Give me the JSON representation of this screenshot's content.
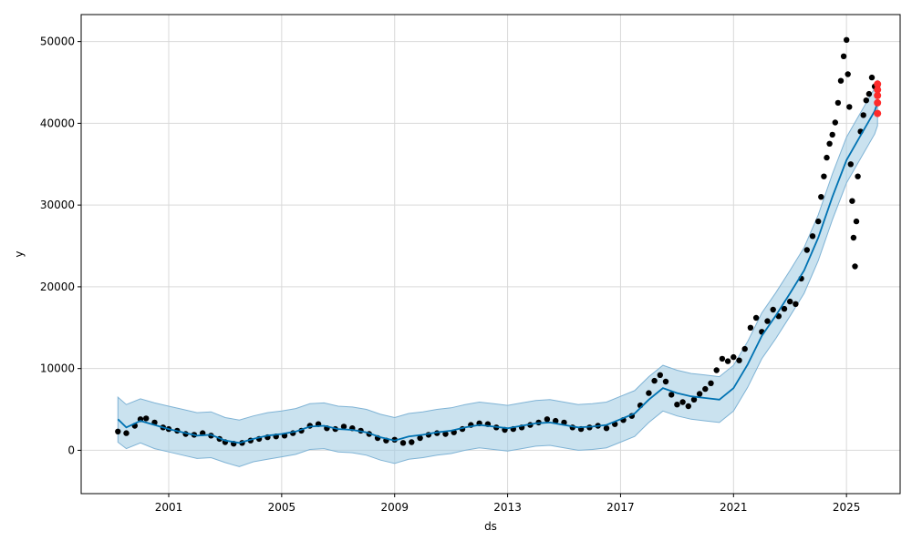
{
  "chart_data": {
    "type": "scatter",
    "title": "",
    "xlabel": "ds",
    "ylabel": "y",
    "xlim": [
      1997.9,
      2026.9
    ],
    "ylim": [
      -5300,
      53300
    ],
    "x_ticks": [
      2001,
      2005,
      2009,
      2013,
      2017,
      2021,
      2025
    ],
    "x_tick_labels": [
      "2001",
      "2005",
      "2009",
      "2013",
      "2017",
      "2021",
      "2025"
    ],
    "y_ticks": [
      0,
      10000,
      20000,
      30000,
      40000,
      50000
    ],
    "y_tick_labels": [
      "0",
      "10000",
      "20000",
      "30000",
      "40000",
      "50000"
    ],
    "grid": true,
    "colors": {
      "observed": "#000000",
      "forecast": "#0072B2",
      "interval": "#9ecae1",
      "interval_edge": "#7fb3d5",
      "highlight": "#ff2b2b"
    },
    "observed": {
      "x": [
        1999.2,
        1999.5,
        1999.8,
        2000.0,
        2000.2,
        2000.5,
        2000.8,
        2001.0,
        2001.3,
        2001.6,
        2001.9,
        2002.2,
        2002.5,
        2002.8,
        2003.0,
        2003.3,
        2003.6,
        2003.9,
        2004.2,
        2004.5,
        2004.8,
        2005.1,
        2005.4,
        2005.7,
        2006.0,
        2006.3,
        2006.6,
        2006.9,
        2007.2,
        2007.5,
        2007.8,
        2008.1,
        2008.4,
        2008.7,
        2009.0,
        2009.3,
        2009.6,
        2009.9,
        2010.2,
        2010.5,
        2010.8,
        2011.1,
        2011.4,
        2011.7,
        2012.0,
        2012.3,
        2012.6,
        2012.9,
        2013.2,
        2013.5,
        2013.8,
        2014.1,
        2014.4,
        2014.7,
        2015.0,
        2015.3,
        2015.6,
        2015.9,
        2016.2,
        2016.5,
        2016.8,
        2017.1,
        2017.4,
        2017.7,
        2018.0,
        2018.2,
        2018.4,
        2018.6,
        2018.8,
        2019.0,
        2019.2,
        2019.4,
        2019.6,
        2019.8,
        2020.0,
        2020.2,
        2020.4,
        2020.6,
        2020.8,
        2021.0,
        2021.2,
        2021.4,
        2021.6,
        2021.8,
        2022.0,
        2022.2,
        2022.4,
        2022.6,
        2022.8,
        2023.0,
        2023.2,
        2023.4,
        2023.6,
        2023.8,
        2024.0,
        2024.1,
        2024.2,
        2024.3,
        2024.4,
        2024.5,
        2024.6,
        2024.7,
        2024.8,
        2024.9,
        2025.0,
        2025.05,
        2025.1,
        2025.15,
        2025.2,
        2025.25,
        2025.3,
        2025.35,
        2025.4,
        2025.5,
        2025.6,
        2025.7,
        2025.8,
        2025.9,
        2026.0,
        2026.1
      ],
      "y": [
        2300,
        2100,
        3000,
        3800,
        3900,
        3400,
        2800,
        2600,
        2400,
        2000,
        1900,
        2100,
        1800,
        1400,
        1000,
        800,
        900,
        1200,
        1400,
        1600,
        1700,
        1800,
        2100,
        2400,
        3000,
        3200,
        2700,
        2600,
        2900,
        2700,
        2400,
        2000,
        1500,
        1200,
        1300,
        900,
        1000,
        1500,
        1900,
        2100,
        2000,
        2200,
        2600,
        3100,
        3300,
        3200,
        2800,
        2500,
        2600,
        2800,
        3100,
        3400,
        3800,
        3600,
        3400,
        2800,
        2600,
        2800,
        3000,
        2700,
        3200,
        3700,
        4200,
        5500,
        7000,
        8500,
        9200,
        8400,
        6800,
        5600,
        5900,
        5400,
        6200,
        6900,
        7500,
        8200,
        9800,
        11200,
        10900,
        11400,
        11000,
        12400,
        15000,
        16200,
        14500,
        15800,
        17200,
        16400,
        17300,
        18200,
        17900,
        21000,
        24500,
        26200,
        28000,
        31000,
        33500,
        35800,
        37500,
        38600,
        40100,
        42500,
        45200,
        48200,
        50200,
        46000,
        42000,
        35000,
        30500,
        26000,
        22500,
        28000,
        33500,
        39000,
        41000,
        42800,
        43600,
        45600,
        44500,
        44600
      ]
    },
    "highlight": {
      "x": [
        2026.1,
        2026.1,
        2026.1,
        2026.1,
        2026.1
      ],
      "y": [
        44800,
        44100,
        43400,
        42500,
        41200
      ]
    },
    "forecast": {
      "x": [
        1999.2,
        1999.5,
        2000.0,
        2000.5,
        2001.0,
        2001.5,
        2002.0,
        2002.5,
        2003.0,
        2003.5,
        2004.0,
        2004.5,
        2005.0,
        2005.5,
        2006.0,
        2006.5,
        2007.0,
        2007.5,
        2008.0,
        2008.5,
        2009.0,
        2009.5,
        2010.0,
        2010.5,
        2011.0,
        2011.5,
        2012.0,
        2012.5,
        2013.0,
        2013.5,
        2014.0,
        2014.5,
        2015.0,
        2015.5,
        2016.0,
        2016.5,
        2017.0,
        2017.5,
        2018.0,
        2018.5,
        2019.0,
        2019.5,
        2020.0,
        2020.5,
        2021.0,
        2021.5,
        2022.0,
        2022.5,
        2023.0,
        2023.5,
        2024.0,
        2024.5,
        2025.0,
        2025.5,
        2026.0,
        2026.1
      ],
      "yhat": [
        3800,
        2800,
        3600,
        3100,
        2600,
        2200,
        1800,
        1900,
        1200,
        900,
        1400,
        1800,
        2000,
        2300,
        2900,
        3000,
        2600,
        2500,
        2200,
        1600,
        1200,
        1700,
        1900,
        2200,
        2400,
        2800,
        3100,
        2900,
        2700,
        3000,
        3300,
        3400,
        3100,
        2800,
        2900,
        3100,
        3800,
        4500,
        6200,
        7600,
        7000,
        6600,
        6400,
        6200,
        7600,
        10500,
        14000,
        16500,
        19200,
        22000,
        26000,
        31000,
        35500,
        38500,
        41500,
        42500
      ],
      "yhat_lower": [
        1000,
        200,
        900,
        200,
        -200,
        -600,
        -1000,
        -900,
        -1500,
        -2000,
        -1400,
        -1100,
        -800,
        -500,
        100,
        200,
        -200,
        -300,
        -600,
        -1200,
        -1600,
        -1100,
        -900,
        -600,
        -400,
        0,
        300,
        100,
        -100,
        200,
        500,
        600,
        300,
        0,
        100,
        300,
        1000,
        1700,
        3400,
        4800,
        4200,
        3800,
        3600,
        3400,
        4800,
        7700,
        11200,
        13700,
        16400,
        19200,
        23200,
        28200,
        32700,
        35700,
        38700,
        39700
      ],
      "yhat_upper": [
        6500,
        5600,
        6300,
        5800,
        5400,
        5000,
        4600,
        4700,
        4000,
        3700,
        4200,
        4600,
        4800,
        5100,
        5700,
        5800,
        5400,
        5300,
        5000,
        4400,
        4000,
        4500,
        4700,
        5000,
        5200,
        5600,
        5900,
        5700,
        5500,
        5800,
        6100,
        6200,
        5900,
        5600,
        5700,
        5900,
        6600,
        7300,
        9000,
        10400,
        9800,
        9400,
        9200,
        9000,
        10400,
        13300,
        16800,
        19300,
        22000,
        24800,
        28800,
        33800,
        38300,
        41300,
        44300,
        45300
      ]
    }
  }
}
